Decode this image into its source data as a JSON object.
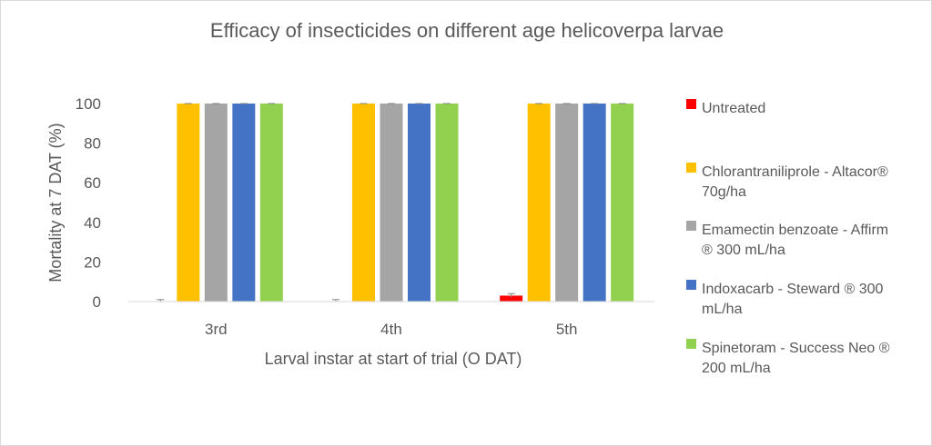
{
  "chart_data": {
    "type": "bar",
    "title": "Efficacy of insecticides on different age helicoverpa larvae",
    "xlabel": "Larval instar at start of trial (O DAT)",
    "ylabel": "Mortality at 7 DAT (%)",
    "ylim": [
      0,
      100
    ],
    "yticks": [
      "0",
      "20",
      "40",
      "60",
      "80",
      "100"
    ],
    "categories": [
      "3rd",
      "4th",
      "5th"
    ],
    "grid": false,
    "legend_position": "right",
    "series": [
      {
        "name": "Untreated",
        "name_lines": [
          "Untreated"
        ],
        "color": "#ff0000",
        "values": [
          0,
          0,
          3
        ],
        "error": [
          1,
          1,
          1
        ]
      },
      {
        "name": "Chlorantraniliprole - Altacor® 70g/ha",
        "name_lines": [
          "Chlorantraniliprole - Altacor®",
          "70g/ha"
        ],
        "color": "#ffc000",
        "values": [
          100,
          100,
          100
        ],
        "error": [
          0,
          0,
          0
        ]
      },
      {
        "name": "Emamectin benzoate - Affirm ® 300 mL/ha",
        "name_lines": [
          "Emamectin benzoate - Affirm",
          "® 300 mL/ha"
        ],
        "color": "#a5a5a5",
        "values": [
          100,
          100,
          100
        ],
        "error": [
          0,
          0,
          0
        ]
      },
      {
        "name": "Indoxacarb - Steward ® 300 mL/ha",
        "name_lines": [
          "Indoxacarb - Steward ® 300",
          "mL/ha"
        ],
        "color": "#4472c4",
        "values": [
          100,
          100,
          100
        ],
        "error": [
          0,
          0,
          0
        ]
      },
      {
        "name": "Spinetoram - Success Neo ® 200 mL/ha",
        "name_lines": [
          "Spinetoram - Success Neo ®",
          "200 mL/ha"
        ],
        "color": "#92d050",
        "values": [
          100,
          100,
          100
        ],
        "error": [
          0,
          0,
          0
        ]
      }
    ]
  }
}
